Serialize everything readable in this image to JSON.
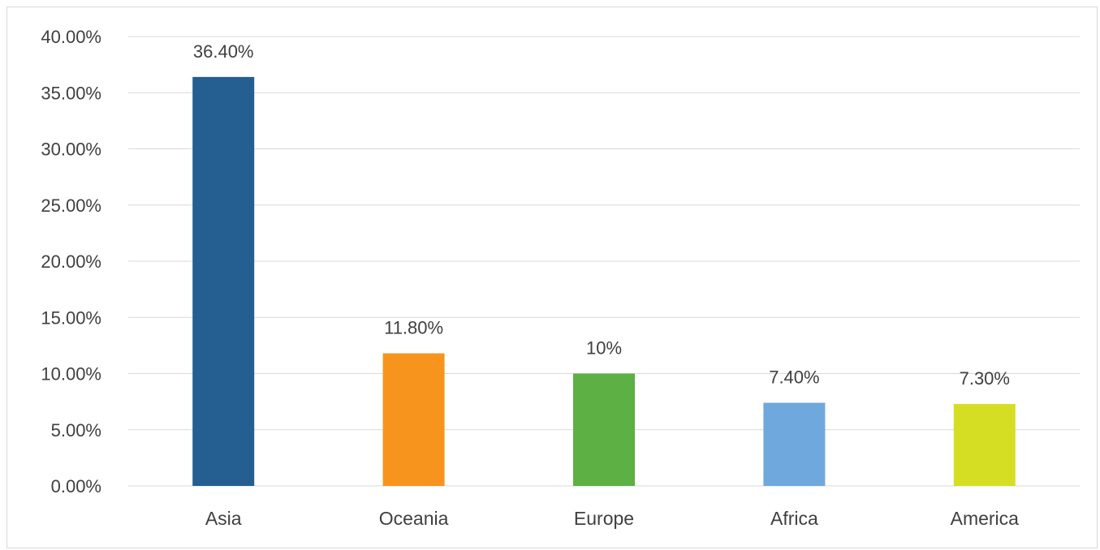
{
  "chart_data": {
    "type": "bar",
    "categories": [
      "Asia",
      "Oceania",
      "Europe",
      "Africa",
      "America"
    ],
    "values": [
      36.4,
      11.8,
      10,
      7.4,
      7.3
    ],
    "data_labels": [
      "36.40%",
      "11.80%",
      "10%",
      "7.40%",
      "7.30%"
    ],
    "colors": [
      "#255E91",
      "#F7941D",
      "#5DB043",
      "#6FA8DC",
      "#D6DE23"
    ],
    "yticks": [
      0,
      5,
      10,
      15,
      20,
      25,
      30,
      35,
      40
    ],
    "ytick_labels": [
      "0.00%",
      "5.00%",
      "10.00%",
      "15.00%",
      "20.00%",
      "25.00%",
      "30.00%",
      "35.00%",
      "40.00%"
    ],
    "ylim": [
      0,
      40
    ],
    "grid": true,
    "legend": "none",
    "title": "",
    "xlabel": "",
    "ylabel": "",
    "gridline_color": "#D9D9D9",
    "text_color": "#404040"
  }
}
